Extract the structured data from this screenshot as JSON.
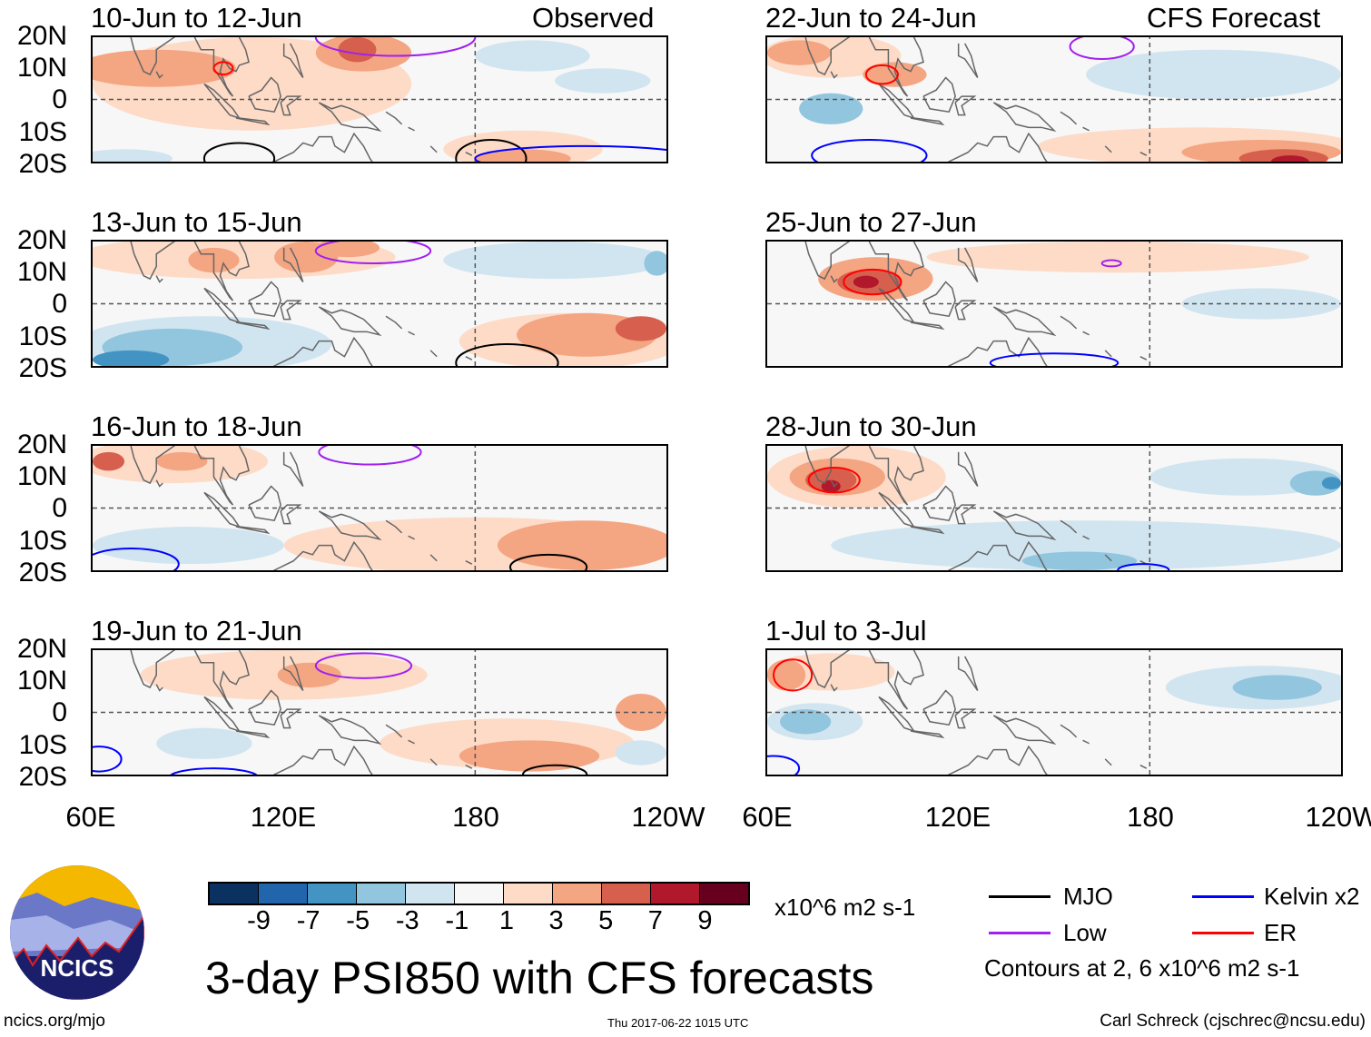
{
  "titles": {
    "observed": "Observed",
    "forecast": "CFS Forecast",
    "main": "3-day PSI850 with CFS forecasts"
  },
  "lat_labels": [
    "20N",
    "10N",
    "0",
    "10S",
    "20S"
  ],
  "lon_labels": [
    "60E",
    "120E",
    "180",
    "120W"
  ],
  "footer": {
    "left": "ncics.org/mjo",
    "center": "Thu 2017-06-22 1015 UTC",
    "right": "Carl Schreck (cjschrec@ncsu.edu)",
    "logo_text": "NCICS"
  },
  "colorbar": {
    "ticks": [
      "-9",
      "-7",
      "-5",
      "-3",
      "-1",
      "1",
      "3",
      "5",
      "7",
      "9"
    ],
    "units": "x10^6 m2 s-1",
    "colors": [
      "#0b3160",
      "#2166ac",
      "#4393c3",
      "#92c5de",
      "#d1e5f0",
      "#f7f7f7",
      "#fddbc7",
      "#f4a582",
      "#d6604d",
      "#b2182b",
      "#67001f"
    ]
  },
  "legend": {
    "items": [
      {
        "label": "MJO",
        "color": "#000000"
      },
      {
        "label": "Kelvin x2",
        "color": "#0000ff"
      },
      {
        "label": "Low",
        "color": "#a020f0"
      },
      {
        "label": "ER",
        "color": "#ff0000"
      }
    ],
    "note": "Contours at 2, 6 x10^6 m2 s-1"
  },
  "chart_data": {
    "type": "heatmap",
    "title": "3-day PSI850 with CFS forecasts",
    "xlim": [
      60,
      240
    ],
    "ylim": [
      -20,
      20
    ],
    "units": "x10^6 m2 s-1",
    "panels": [
      {
        "label": "10-Jun to 12-Jun",
        "blobs": [
          [
            110,
            5,
            50,
            15,
            2
          ],
          [
            80,
            10,
            25,
            6,
            4
          ],
          [
            145,
            15,
            15,
            6,
            4
          ],
          [
            143,
            16,
            6,
            4,
            6
          ],
          [
            195,
            -16,
            25,
            6,
            2
          ],
          [
            195,
            -19,
            15,
            3,
            4
          ],
          [
            198,
            14,
            18,
            5,
            -2
          ],
          [
            220,
            6,
            15,
            4,
            -2
          ],
          [
            70,
            -19,
            15,
            3,
            -2
          ]
        ],
        "contours": [
          [
            106,
            -19,
            11,
            5,
            "MJO"
          ],
          [
            185,
            -19,
            11,
            6,
            "MJO"
          ],
          [
            215,
            -19,
            35,
            4,
            "Kelvin"
          ],
          [
            155,
            20,
            25,
            6,
            "Low"
          ],
          [
            101,
            10,
            3,
            2,
            "ER"
          ]
        ]
      },
      {
        "label": "13-Jun to 15-Jun",
        "blobs": [
          [
            105,
            15,
            50,
            7,
            2
          ],
          [
            98,
            14,
            8,
            4,
            4
          ],
          [
            127,
            15,
            10,
            5,
            4
          ],
          [
            140,
            18,
            10,
            3,
            4
          ],
          [
            95,
            -13,
            40,
            9,
            -2
          ],
          [
            85,
            -14,
            22,
            6,
            -4
          ],
          [
            72,
            -18,
            12,
            3,
            -6
          ],
          [
            210,
            -12,
            35,
            9,
            2
          ],
          [
            215,
            -10,
            22,
            7,
            4
          ],
          [
            232,
            -8,
            8,
            4,
            6
          ],
          [
            205,
            14,
            35,
            6,
            -2
          ],
          [
            237,
            13,
            4,
            4,
            -4
          ]
        ],
        "contours": [
          [
            190,
            -19,
            16,
            6,
            "MJO"
          ],
          [
            148,
            17,
            18,
            4,
            "Low"
          ]
        ]
      },
      {
        "label": "16-Jun to 18-Jun",
        "blobs": [
          [
            85,
            15,
            30,
            7,
            2
          ],
          [
            65,
            15,
            5,
            3,
            6
          ],
          [
            88,
            15,
            8,
            3,
            4
          ],
          [
            180,
            -12,
            60,
            9,
            2
          ],
          [
            215,
            -12,
            28,
            8,
            4
          ],
          [
            90,
            -12,
            30,
            6,
            -2
          ]
        ],
        "contours": [
          [
            72,
            -18,
            15,
            5,
            "Kelvin"
          ],
          [
            203,
            -19,
            12,
            4,
            "MJO"
          ],
          [
            147,
            18,
            16,
            4,
            "Low"
          ]
        ]
      },
      {
        "label": "19-Jun to 21-Jun",
        "blobs": [
          [
            120,
            12,
            45,
            8,
            2
          ],
          [
            190,
            -10,
            40,
            8,
            2
          ],
          [
            197,
            -14,
            22,
            5,
            4
          ],
          [
            232,
            0,
            8,
            6,
            4
          ],
          [
            128,
            12,
            10,
            4,
            4
          ],
          [
            95,
            -10,
            15,
            5,
            -2
          ],
          [
            232,
            -13,
            8,
            4,
            -2
          ]
        ],
        "contours": [
          [
            62,
            -15,
            7,
            4,
            "Kelvin"
          ],
          [
            205,
            -20,
            10,
            3,
            "MJO"
          ],
          [
            98,
            -21,
            14,
            3,
            "Kelvin"
          ],
          [
            145,
            15,
            15,
            4,
            "Low"
          ]
        ]
      },
      {
        "label": "22-Jun to 24-Jun",
        "blobs": [
          [
            80,
            14,
            22,
            7,
            2
          ],
          [
            70,
            15,
            10,
            4,
            4
          ],
          [
            100,
            8,
            10,
            4,
            4
          ],
          [
            195,
            -15,
            50,
            6,
            2
          ],
          [
            215,
            -17,
            25,
            4,
            4
          ],
          [
            222,
            -19,
            14,
            3,
            6
          ],
          [
            224,
            -20,
            6,
            2,
            8
          ],
          [
            80,
            -3,
            10,
            5,
            -4
          ],
          [
            200,
            8,
            40,
            8,
            -2
          ]
        ],
        "contours": [
          [
            96,
            8,
            5,
            3,
            "ER"
          ],
          [
            92,
            -18,
            18,
            5,
            "Kelvin"
          ],
          [
            165,
            17,
            10,
            4,
            "Low"
          ]
        ]
      },
      {
        "label": "25-Jun to 27-Jun",
        "blobs": [
          [
            94,
            8,
            18,
            7,
            4
          ],
          [
            92,
            7,
            10,
            4,
            6
          ],
          [
            91,
            7,
            4,
            2,
            8
          ],
          [
            170,
            15,
            60,
            5,
            2
          ],
          [
            215,
            0,
            25,
            5,
            -2
          ]
        ],
        "contours": [
          [
            93,
            7,
            9,
            4,
            "ER"
          ],
          [
            150,
            -19,
            20,
            3,
            "Kelvin"
          ],
          [
            168,
            13,
            3,
            1,
            "Low"
          ]
        ]
      },
      {
        "label": "28-Jun to 30-Jun",
        "blobs": [
          [
            88,
            10,
            28,
            10,
            2
          ],
          [
            82,
            10,
            15,
            6,
            4
          ],
          [
            80,
            9,
            8,
            4,
            6
          ],
          [
            80,
            7,
            3,
            2,
            8
          ],
          [
            160,
            -12,
            80,
            8,
            -2
          ],
          [
            158,
            -17,
            18,
            3,
            -4
          ],
          [
            210,
            10,
            30,
            6,
            -2
          ],
          [
            232,
            8,
            8,
            4,
            -4
          ],
          [
            237,
            8,
            3,
            2,
            -6
          ]
        ],
        "contours": [
          [
            81,
            9,
            8,
            4,
            "ER"
          ],
          [
            178,
            -20,
            8,
            2,
            "Kelvin"
          ]
        ]
      },
      {
        "label": "1-Jul to 3-Jul",
        "blobs": [
          [
            80,
            13,
            20,
            6,
            2
          ],
          [
            66,
            12,
            6,
            5,
            4
          ],
          [
            75,
            -3,
            15,
            6,
            -2
          ],
          [
            72,
            -3,
            8,
            4,
            -4
          ],
          [
            215,
            8,
            30,
            7,
            -2
          ],
          [
            220,
            8,
            14,
            4,
            -4
          ]
        ],
        "contours": [
          [
            68,
            12,
            6,
            5,
            "ER"
          ],
          [
            62,
            -18,
            8,
            4,
            "Kelvin"
          ]
        ]
      }
    ]
  }
}
